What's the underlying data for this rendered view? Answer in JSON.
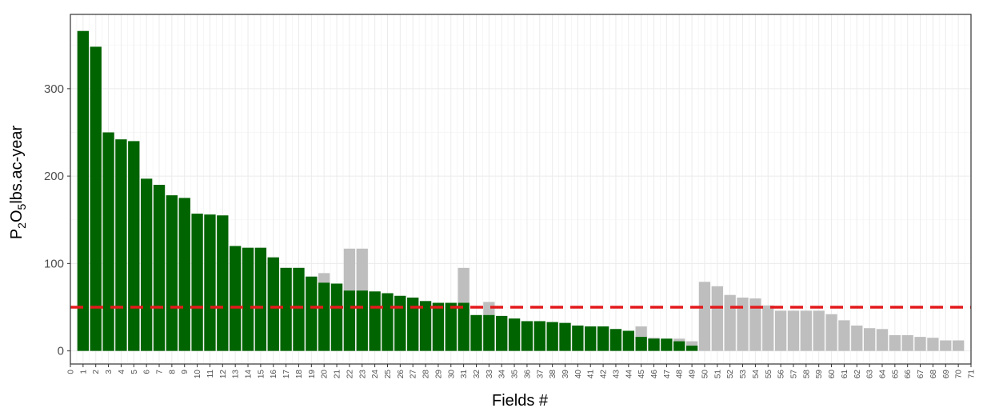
{
  "chart_data": {
    "type": "bar",
    "title": "",
    "xlabel": "Fields #",
    "ylabel": {
      "p": "P",
      "sub2": "2",
      "o": "O",
      "sub5": "5",
      "rest": "lbs.ac-year"
    },
    "xlim": [
      0,
      71
    ],
    "ylim": [
      -15,
      385
    ],
    "y_ticks": [
      0,
      100,
      200,
      300
    ],
    "x_ticks": [
      0,
      1,
      2,
      3,
      4,
      5,
      6,
      7,
      8,
      9,
      10,
      11,
      12,
      13,
      14,
      15,
      16,
      17,
      18,
      19,
      20,
      21,
      22,
      23,
      24,
      25,
      26,
      27,
      28,
      29,
      30,
      31,
      32,
      33,
      34,
      35,
      36,
      37,
      38,
      39,
      40,
      41,
      42,
      43,
      44,
      45,
      46,
      47,
      48,
      49,
      50,
      51,
      52,
      53,
      54,
      55,
      56,
      57,
      58,
      59,
      60,
      61,
      62,
      63,
      64,
      65,
      66,
      67,
      68,
      69,
      70,
      71
    ],
    "threshold": {
      "value": 50,
      "color": "#e31a1c",
      "style": "dashed"
    },
    "colors": {
      "green": "#006400",
      "grey": "#bebebe",
      "panel_border": "#333333",
      "grid_major": "#ebebeb",
      "grid_minor": "#f5f5f5"
    },
    "grid": true,
    "series": [
      {
        "color": "#bebebe",
        "x": [
          1,
          2,
          3,
          4,
          5,
          6,
          7,
          8,
          9,
          10,
          11,
          12,
          13,
          14,
          15,
          16,
          17,
          18,
          19,
          20,
          21,
          22,
          23,
          24,
          25,
          26,
          27,
          28,
          29,
          30,
          31,
          32,
          33,
          34,
          35,
          36,
          37,
          38,
          39,
          40,
          41,
          42,
          43,
          44,
          45,
          46,
          47,
          48,
          49,
          50,
          51,
          52,
          53,
          54,
          55,
          56,
          57,
          58,
          59,
          60,
          61,
          62,
          63,
          64,
          65,
          66,
          67,
          68,
          69,
          70
        ],
        "values": [
          366,
          348,
          250,
          242,
          240,
          197,
          190,
          178,
          175,
          157,
          156,
          155,
          120,
          118,
          118,
          107,
          95,
          95,
          85,
          89,
          77,
          117,
          117,
          68,
          66,
          63,
          61,
          57,
          55,
          55,
          95,
          41,
          56,
          40,
          37,
          34,
          34,
          33,
          32,
          29,
          28,
          28,
          25,
          23,
          28,
          15,
          14,
          14,
          11,
          79,
          74,
          64,
          61,
          60,
          52,
          46,
          46,
          46,
          46,
          42,
          35,
          29,
          26,
          25,
          18,
          18,
          16,
          15,
          12,
          12
        ]
      },
      {
        "color": "#006400",
        "x": [
          1,
          2,
          3,
          4,
          5,
          6,
          7,
          8,
          9,
          10,
          11,
          12,
          13,
          14,
          15,
          16,
          17,
          18,
          19,
          20,
          21,
          22,
          23,
          24,
          25,
          26,
          27,
          28,
          29,
          30,
          31,
          32,
          33,
          34,
          35,
          36,
          37,
          38,
          39,
          40,
          41,
          42,
          43,
          44,
          45,
          46,
          47,
          48,
          49
        ],
        "values": [
          366,
          348,
          250,
          242,
          240,
          197,
          190,
          178,
          175,
          157,
          156,
          155,
          120,
          118,
          118,
          107,
          95,
          95,
          85,
          78,
          77,
          69,
          69,
          68,
          66,
          63,
          61,
          57,
          55,
          55,
          55,
          41,
          41,
          40,
          37,
          34,
          34,
          33,
          32,
          29,
          28,
          28,
          25,
          23,
          16,
          14,
          14,
          11,
          6
        ]
      }
    ]
  }
}
